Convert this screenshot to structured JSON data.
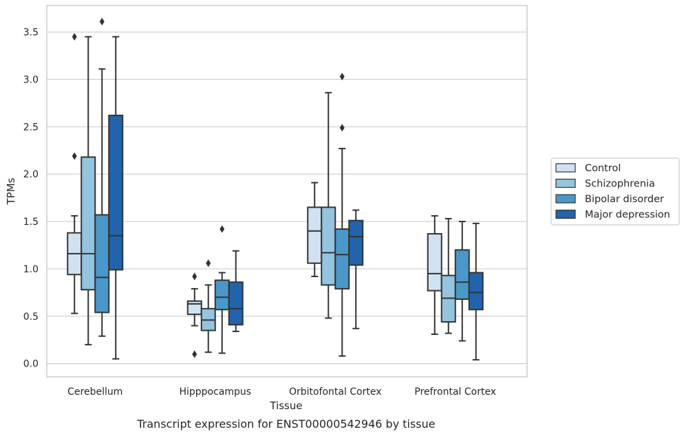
{
  "chart_data": {
    "type": "box",
    "xlabel": "Tissue",
    "ylabel": "TPMs",
    "caption": "Transcript expression for ENST00000542946 by tissue",
    "ylim": [
      -0.14,
      3.78
    ],
    "yticks": [
      "0.0",
      "0.5",
      "1.0",
      "1.5",
      "2.0",
      "2.5",
      "3.0",
      "3.5"
    ],
    "grid": "horizontal",
    "legend_position": "outside-right",
    "categories": [
      "Cerebellum",
      "Hipppocampus",
      "Orbitofontal Cortex",
      "Prefrontal Cortex"
    ],
    "series": [
      {
        "name": "Control",
        "color": "#d0e1f2",
        "boxes": [
          {
            "min": 0.53,
            "q1": 0.94,
            "median": 1.16,
            "q3": 1.38,
            "max": 1.56,
            "outliers": [
              2.19,
              3.45
            ]
          },
          {
            "min": 0.4,
            "q1": 0.52,
            "median": 0.63,
            "q3": 0.66,
            "max": 0.79,
            "outliers": [
              0.92,
              0.1
            ]
          },
          {
            "min": 0.92,
            "q1": 1.06,
            "median": 1.4,
            "q3": 1.65,
            "max": 1.91,
            "outliers": []
          },
          {
            "min": 0.31,
            "q1": 0.77,
            "median": 0.95,
            "q3": 1.37,
            "max": 1.56,
            "outliers": []
          }
        ]
      },
      {
        "name": "Schizophrenia",
        "color": "#94c4df",
        "boxes": [
          {
            "min": 0.2,
            "q1": 0.78,
            "median": 1.16,
            "q3": 2.18,
            "max": 3.45,
            "outliers": []
          },
          {
            "min": 0.12,
            "q1": 0.35,
            "median": 0.46,
            "q3": 0.58,
            "max": 0.83,
            "outliers": [
              1.06
            ]
          },
          {
            "min": 0.48,
            "q1": 0.83,
            "median": 1.17,
            "q3": 1.65,
            "max": 2.86,
            "outliers": []
          },
          {
            "min": 0.32,
            "q1": 0.44,
            "median": 0.69,
            "q3": 0.93,
            "max": 1.53,
            "outliers": []
          }
        ]
      },
      {
        "name": "Bipolar disorder",
        "color": "#4a98c9",
        "boxes": [
          {
            "min": 0.29,
            "q1": 0.54,
            "median": 0.91,
            "q3": 1.57,
            "max": 3.11,
            "outliers": [
              3.61
            ]
          },
          {
            "min": 0.11,
            "q1": 0.57,
            "median": 0.7,
            "q3": 0.88,
            "max": 0.96,
            "outliers": [
              1.42
            ]
          },
          {
            "min": 0.08,
            "q1": 0.79,
            "median": 1.15,
            "q3": 1.42,
            "max": 2.27,
            "outliers": [
              2.49,
              3.03
            ]
          },
          {
            "min": 0.24,
            "q1": 0.68,
            "median": 0.86,
            "q3": 1.2,
            "max": 1.5,
            "outliers": []
          }
        ]
      },
      {
        "name": "Major depression",
        "color": "#2164ab",
        "boxes": [
          {
            "min": 0.05,
            "q1": 0.99,
            "median": 1.35,
            "q3": 2.62,
            "max": 3.45,
            "outliers": []
          },
          {
            "min": 0.34,
            "q1": 0.41,
            "median": 0.58,
            "q3": 0.86,
            "max": 1.19,
            "outliers": []
          },
          {
            "min": 0.37,
            "q1": 1.04,
            "median": 1.34,
            "q3": 1.51,
            "max": 1.62,
            "outliers": []
          },
          {
            "min": 0.04,
            "q1": 0.57,
            "median": 0.75,
            "q3": 0.96,
            "max": 1.48,
            "outliers": []
          }
        ]
      }
    ]
  }
}
